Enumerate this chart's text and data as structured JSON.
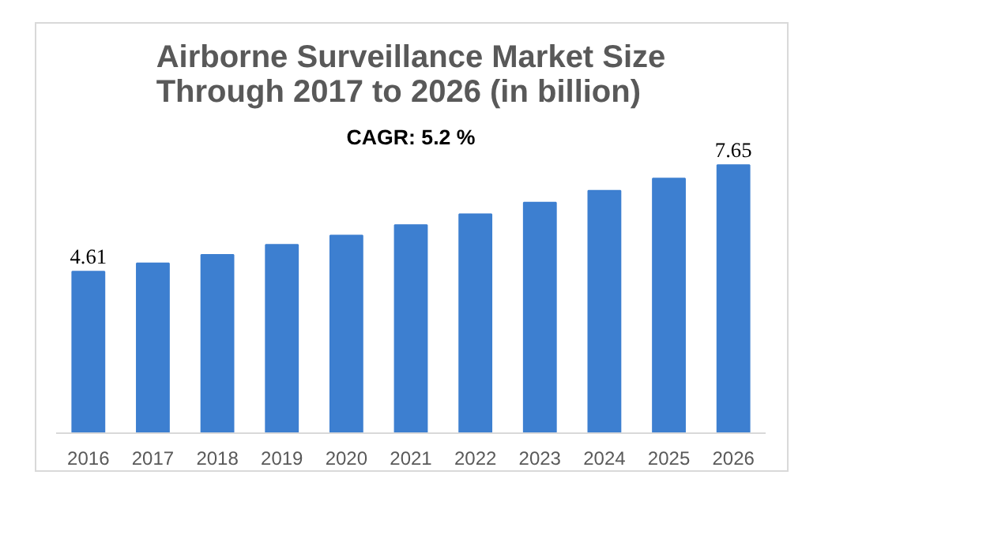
{
  "chart_data": {
    "type": "bar",
    "title": "Airborne Surveillance Market Size Through 2017 to 2026 (in billion)",
    "categories": [
      "2016",
      "2017",
      "2018",
      "2019",
      "2020",
      "2021",
      "2022",
      "2023",
      "2024",
      "2025",
      "2026"
    ],
    "values": [
      4.61,
      4.85,
      5.09,
      5.38,
      5.64,
      5.94,
      6.25,
      6.58,
      6.92,
      7.27,
      7.65
    ],
    "value_labels": [
      "4.61",
      null,
      null,
      null,
      null,
      null,
      null,
      null,
      null,
      null,
      "7.65"
    ],
    "color": "#3d7fd0",
    "annotations": [
      "CAGR: 5.2 %"
    ],
    "grid": false
  }
}
